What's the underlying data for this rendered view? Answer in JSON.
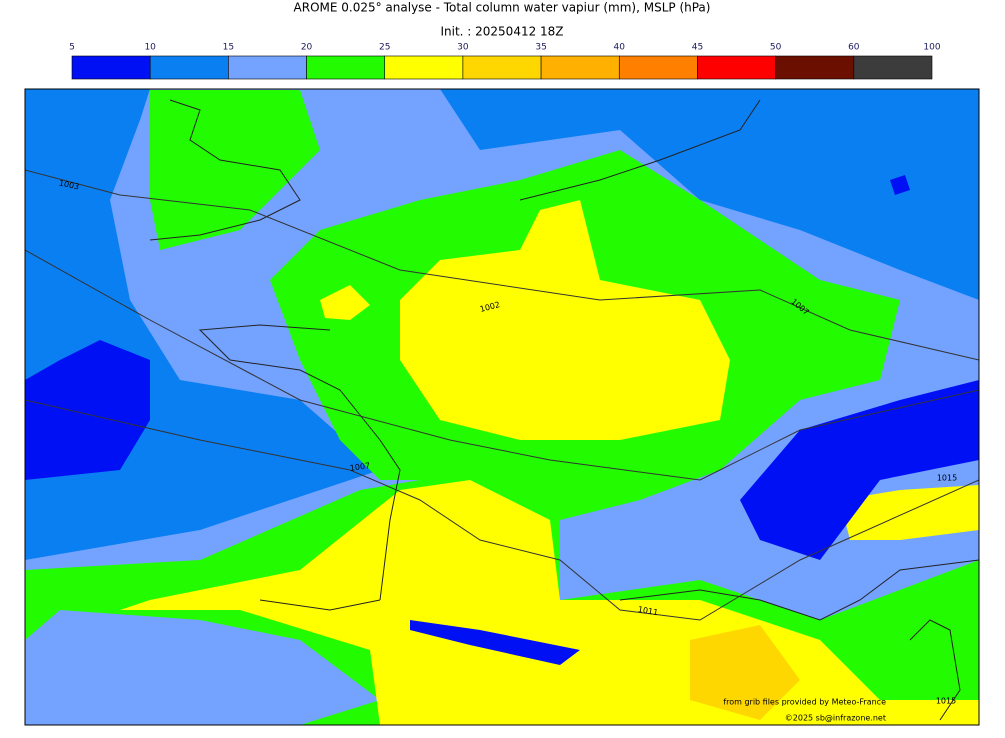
{
  "title": "AROME 0.025° analyse - Total column water vapiur (mm), MSLP (hPa)",
  "subtitle": "Init. : 20250412 18Z",
  "colorbar": {
    "ticks": [
      5,
      10,
      15,
      20,
      25,
      30,
      35,
      40,
      45,
      50,
      60,
      100
    ],
    "colors": [
      "#0010f5",
      "#0a7ff2",
      "#74a2ff",
      "#22fb00",
      "#ffff00",
      "#ffd700",
      "#ffb000",
      "#ff8000",
      "#ff0000",
      "#6b1000",
      "#3c3c3c"
    ]
  },
  "isobar_labels": [
    "1003",
    "1002",
    "1007",
    "1007",
    "1015",
    "1011",
    "1015"
  ],
  "credits": [
    "from grib files provided by Meteo-France",
    "©2025 sb@infrazone.net"
  ]
}
